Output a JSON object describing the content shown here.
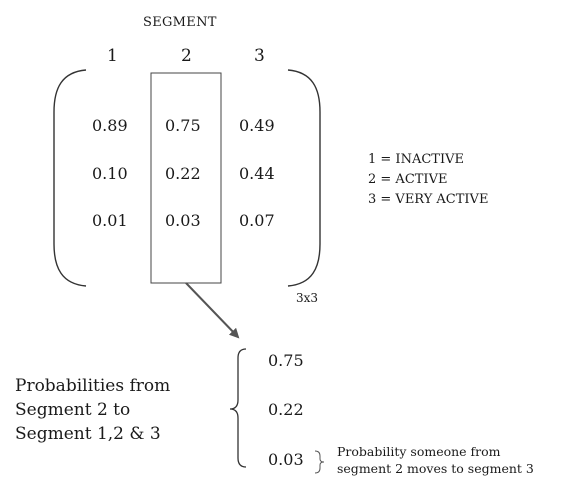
{
  "matrix": {
    "header": "SEGMENT",
    "columns": [
      "1",
      "2",
      "3"
    ],
    "rows": [
      [
        "0.89",
        "0.75",
        "0.49"
      ],
      [
        "0.10",
        "0.22",
        "0.44"
      ],
      [
        "0.01",
        "0.03",
        "0.07"
      ]
    ],
    "dimension": "3x3",
    "highlighted_column": 2
  },
  "legend": [
    "1 = INACTIVE",
    "2 = ACTIVE",
    "3 = VERY ACTIVE"
  ],
  "vector": [
    "0.75",
    "0.22",
    "0.03"
  ],
  "caption": {
    "line1": "Probabilities from",
    "line2": "Segment 2 to",
    "line3": "Segment 1,2 & 3"
  },
  "note": {
    "line1": "Probability someone from",
    "line2": "segment 2 moves to segment 3"
  }
}
